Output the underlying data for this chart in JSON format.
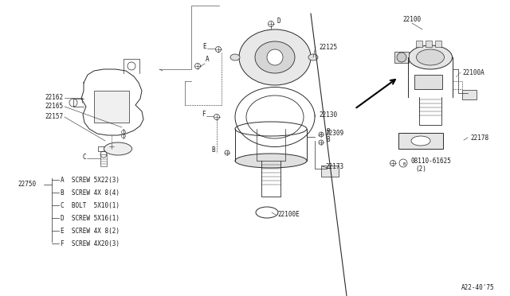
{
  "bg_color": "#ffffff",
  "line_color": "#2a2a2a",
  "text_color": "#1a1a1a",
  "page_ref": "A22-40'75",
  "legend_items": [
    [
      "A",
      "SCREW 5X22(3)"
    ],
    [
      "B",
      "SCREW 4X 8(4)"
    ],
    [
      "C",
      "BOLT  5X10(1)"
    ],
    [
      "D",
      "SCREW 5X16(1)"
    ],
    [
      "E",
      "SCREW 4X 8(2)"
    ],
    [
      "F",
      "SCREW 4X20(3)"
    ]
  ],
  "fig_width": 6.4,
  "fig_height": 3.72,
  "dpi": 100
}
